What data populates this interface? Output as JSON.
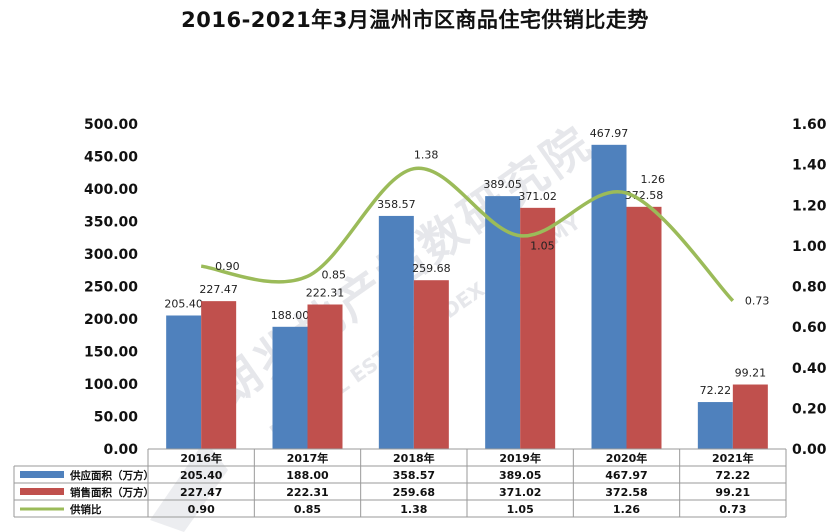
{
  "chart_data": {
    "type": "bar",
    "title": "2016-2021年3月温州市区商品住宅供销比走势",
    "categories": [
      "2016年",
      "2017年",
      "2018年",
      "2019年",
      "2020年",
      "2021年"
    ],
    "series": [
      {
        "name": "供应面积（万方）",
        "type": "bar",
        "axis": "left",
        "color": "#4f81bd",
        "values": [
          205.4,
          188.0,
          358.57,
          389.05,
          467.97,
          72.22
        ],
        "labels": [
          "205.40",
          "188.00",
          "358.57",
          "389.05",
          "467.97",
          "72.22"
        ]
      },
      {
        "name": "销售面积（万方）",
        "type": "bar",
        "axis": "left",
        "color": "#c0504d",
        "values": [
          227.47,
          222.31,
          259.68,
          371.02,
          372.58,
          99.21
        ],
        "labels": [
          "227.47",
          "222.31",
          "259.68",
          "371.02",
          "372.58",
          "99.21"
        ]
      },
      {
        "name": "供销比",
        "type": "line",
        "axis": "right",
        "color": "#9bbb59",
        "values": [
          0.9,
          0.85,
          1.38,
          1.05,
          1.26,
          0.73
        ],
        "labels": [
          "0.90",
          "0.85",
          "1.38",
          "1.05",
          "1.26",
          "0.73"
        ]
      }
    ],
    "y_left": {
      "min": 0,
      "max": 500,
      "step": 50,
      "tick_labels": [
        "0.00",
        "50.00",
        "100.00",
        "150.00",
        "200.00",
        "250.00",
        "300.00",
        "350.00",
        "400.00",
        "450.00",
        "500.00"
      ]
    },
    "y_right": {
      "min": 0,
      "max": 1.6,
      "step": 0.2,
      "tick_labels": [
        "0.00",
        "0.20",
        "0.40",
        "0.60",
        "0.80",
        "1.00",
        "1.20",
        "1.40",
        "1.60"
      ]
    },
    "data_table": true,
    "grid": false
  },
  "watermark": {
    "logo_text": "朗兆地产指数研究院",
    "sub_text": "LZ REAL ESTATE INDEX ACADEMY"
  }
}
